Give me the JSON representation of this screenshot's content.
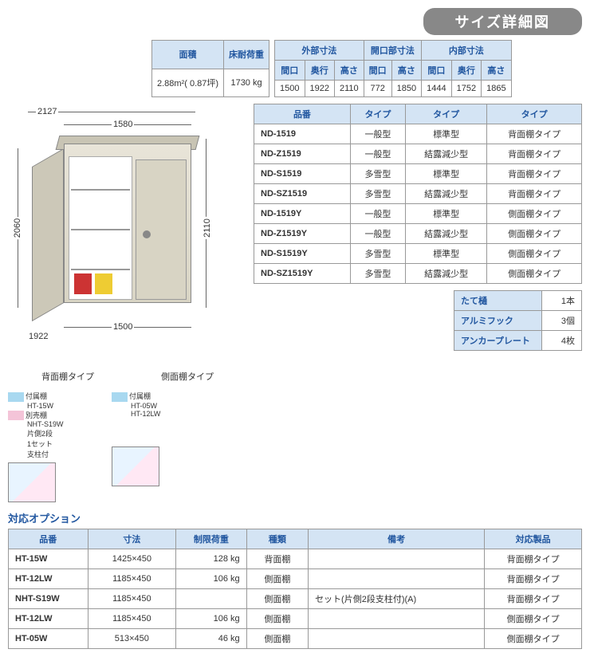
{
  "title": "サイズ詳細図",
  "area_table": {
    "headers": [
      "面積",
      "床耐荷重"
    ],
    "values": [
      "2.88m²( 0.87坪)",
      "1730 kg"
    ]
  },
  "dimensions_table": {
    "groups": [
      "外部寸法",
      "開口部寸法",
      "内部寸法"
    ],
    "sub_headers": [
      "間口",
      "奥行",
      "高さ",
      "間口",
      "高さ",
      "間口",
      "奥行",
      "高さ"
    ],
    "values": [
      "1500",
      "1922",
      "2110",
      "772",
      "1850",
      "1444",
      "1752",
      "1865"
    ]
  },
  "diagram": {
    "w_top_overall": "2127",
    "w_top": "1580",
    "w_bottom": "1500",
    "depth": "1922",
    "h_left": "2060",
    "h_right": "2110",
    "label_back": "背面棚タイプ",
    "label_side": "側面棚タイプ"
  },
  "shelf_legend": {
    "blue_label": "付属棚",
    "blue_codes_left": "HT-15W",
    "blue_codes_right_1": "HT-05W",
    "blue_codes_right_2": "HT-12LW",
    "pink_label": "別売棚",
    "pink_code": "NHT-S19W",
    "pink_note1": "片側2段",
    "pink_note2": "1セット",
    "pink_note3": "支柱付"
  },
  "model_table": {
    "headers": [
      "品番",
      "タイプ",
      "タイプ",
      "タイプ"
    ],
    "rows": [
      [
        "ND-1519",
        "一般型",
        "標準型",
        "背面棚タイプ"
      ],
      [
        "ND-Z1519",
        "一般型",
        "結露減少型",
        "背面棚タイプ"
      ],
      [
        "ND-S1519",
        "多雪型",
        "標準型",
        "背面棚タイプ"
      ],
      [
        "ND-SZ1519",
        "多雪型",
        "結露減少型",
        "背面棚タイプ"
      ],
      [
        "ND-1519Y",
        "一般型",
        "標準型",
        "側面棚タイプ"
      ],
      [
        "ND-Z1519Y",
        "一般型",
        "結露減少型",
        "側面棚タイプ"
      ],
      [
        "ND-S1519Y",
        "多雪型",
        "標準型",
        "側面棚タイプ"
      ],
      [
        "ND-SZ1519Y",
        "多雪型",
        "結露減少型",
        "側面棚タイプ"
      ]
    ]
  },
  "accessories": {
    "rows": [
      [
        "たて樋",
        "1本"
      ],
      [
        "アルミフック",
        "3個"
      ],
      [
        "アンカープレート",
        "4枚"
      ]
    ]
  },
  "options": {
    "title": "対応オプション",
    "headers": [
      "品番",
      "寸法",
      "制限荷重",
      "種類",
      "備考",
      "対応製品"
    ],
    "rows": [
      [
        "HT-15W",
        "1425×450",
        "128 kg",
        "背面棚",
        "",
        "背面棚タイプ"
      ],
      [
        "HT-12LW",
        "1185×450",
        "106 kg",
        "側面棚",
        "",
        "背面棚タイプ"
      ],
      [
        "NHT-S19W",
        "1185×450",
        "",
        "側面棚",
        "セット(片側2段支柱付)(A)",
        "背面棚タイプ"
      ],
      [
        "HT-12LW",
        "1185×450",
        "106 kg",
        "側面棚",
        "",
        "側面棚タイプ"
      ],
      [
        "HT-05W",
        "513×450",
        "46 kg",
        "側面棚",
        "",
        "側面棚タイプ"
      ]
    ]
  }
}
